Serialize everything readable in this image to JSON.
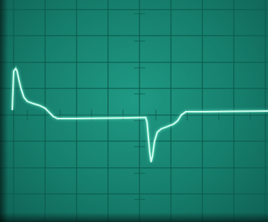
{
  "scene": {
    "kind": "oscilloscope screen photo",
    "grid_divisions": {
      "horizontal": 10,
      "vertical": 8
    },
    "colors": {
      "screen": "#178a76",
      "grid": "#0c5e50",
      "trace": "#d6fff0",
      "trace_glow": "#7dffdc"
    }
  }
}
